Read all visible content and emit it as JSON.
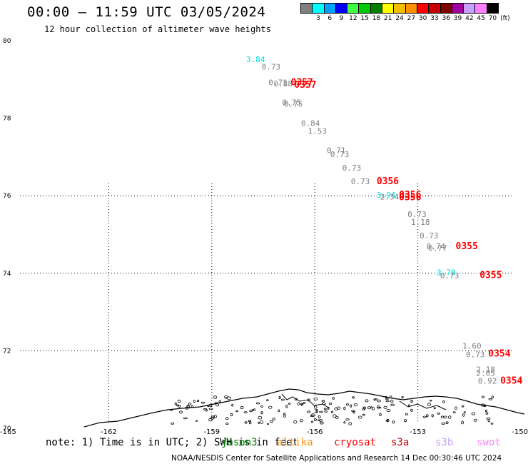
{
  "header": {
    "title": "00:00 – 11:59 UTC 03/05/2024",
    "subtitle": "12 hour collection of altimeter wave heights"
  },
  "legend": {
    "unit": "(ft)",
    "bins": [
      {
        "label": "",
        "color": "#808080"
      },
      {
        "label": "3",
        "color": "#00ffff"
      },
      {
        "label": "6",
        "color": "#00a0ff"
      },
      {
        "label": "9",
        "color": "#0000ff"
      },
      {
        "label": "12",
        "color": "#40ff40"
      },
      {
        "label": "15",
        "color": "#00c800"
      },
      {
        "label": "18",
        "color": "#008000"
      },
      {
        "label": "21",
        "color": "#ffff00"
      },
      {
        "label": "24",
        "color": "#f0c000"
      },
      {
        "label": "27",
        "color": "#ff9000"
      },
      {
        "label": "30",
        "color": "#ff0000"
      },
      {
        "label": "33",
        "color": "#c80000"
      },
      {
        "label": "36",
        "color": "#800000"
      },
      {
        "label": "39",
        "color": "#a000a0"
      },
      {
        "label": "42",
        "color": "#c8a0ff"
      },
      {
        "label": "45",
        "color": "#ff80ff"
      },
      {
        "label": "70",
        "color": "#000000"
      }
    ]
  },
  "footer": {
    "note": "note: 1) Time is in UTC; 2) SWH is in feet",
    "satellites": [
      {
        "name": "jason3",
        "color": "#008000"
      },
      {
        "name": "altika",
        "color": "#ff9000"
      },
      {
        "name": "cryosat",
        "color": "#ff0000"
      },
      {
        "name": "s3a",
        "color": "#c80000"
      },
      {
        "name": "s3b",
        "color": "#c8a0ff"
      },
      {
        "name": "swot",
        "color": "#ff80ff"
      }
    ],
    "credit": "NOAA/NESDIS Center for Satellite Applications and Research   14 Dec 00:30:46 UTC 2024"
  },
  "chart_data": {
    "type": "scatter",
    "title": "00:00 – 11:59 UTC 03/05/2024",
    "subtitle": "12 hour collection of altimeter wave heights",
    "xlabel": "",
    "ylabel": "",
    "xlim": [
      -165,
      -150
    ],
    "ylim": [
      70,
      80
    ],
    "xticks": [
      "-165",
      "-162",
      "-159",
      "-156",
      "-153",
      "-150"
    ],
    "xtick_values": [
      -165,
      -162,
      -159,
      -156,
      -153,
      -150
    ],
    "yticks": [
      "70",
      "72",
      "74",
      "76",
      "78",
      "80"
    ],
    "ytick_values": [
      70,
      72,
      74,
      76,
      78,
      80
    ],
    "grid": true,
    "grid_lons": [
      -162,
      -159,
      -156,
      -153
    ],
    "grid_lats": [
      72,
      74,
      76
    ],
    "grid_style": "dotted",
    "points": [
      {
        "lon": -158.0,
        "lat": 79.45,
        "text": "3.84",
        "color": "#00e0e0"
      },
      {
        "lon": -157.55,
        "lat": 79.25,
        "text": "0.73",
        "color": "#808080"
      },
      {
        "lon": -157.35,
        "lat": 78.85,
        "text": "0.71",
        "color": "#808080"
      },
      {
        "lon": -157.2,
        "lat": 78.82,
        "text": "0.88",
        "color": "#808080"
      },
      {
        "lon": -156.7,
        "lat": 78.85,
        "text": "0357",
        "color": "#ff0000"
      },
      {
        "lon": -156.6,
        "lat": 78.78,
        "text": "0357",
        "color": "#ff0000"
      },
      {
        "lon": -156.95,
        "lat": 78.33,
        "text": "0.75",
        "color": "#808080"
      },
      {
        "lon": -156.9,
        "lat": 78.3,
        "text": "0.75",
        "color": "#808080"
      },
      {
        "lon": -156.4,
        "lat": 77.8,
        "text": "0.84",
        "color": "#808080"
      },
      {
        "lon": -156.2,
        "lat": 77.6,
        "text": "1.53",
        "color": "#808080"
      },
      {
        "lon": -155.65,
        "lat": 77.1,
        "text": "0.71",
        "color": "#808080"
      },
      {
        "lon": -155.55,
        "lat": 77.0,
        "text": "0.73",
        "color": "#808080"
      },
      {
        "lon": -155.2,
        "lat": 76.65,
        "text": "0.73",
        "color": "#808080"
      },
      {
        "lon": -154.95,
        "lat": 76.3,
        "text": "0.73",
        "color": "#808080"
      },
      {
        "lon": -154.2,
        "lat": 76.3,
        "text": "0356",
        "color": "#ff0000"
      },
      {
        "lon": -154.2,
        "lat": 75.95,
        "text": "3.94",
        "color": "#00e0e0"
      },
      {
        "lon": -154.1,
        "lat": 75.9,
        "text": "2.34",
        "color": "#808080"
      },
      {
        "lon": -153.55,
        "lat": 75.95,
        "text": "0356",
        "color": "#ff0000"
      },
      {
        "lon": -153.55,
        "lat": 75.88,
        "text": "0356",
        "color": "#ff0000"
      },
      {
        "lon": -153.3,
        "lat": 75.45,
        "text": "0.73",
        "color": "#808080"
      },
      {
        "lon": -153.2,
        "lat": 75.25,
        "text": "1.18",
        "color": "#808080"
      },
      {
        "lon": -152.95,
        "lat": 74.9,
        "text": "0.73",
        "color": "#808080"
      },
      {
        "lon": -152.75,
        "lat": 74.62,
        "text": "0.74",
        "color": "#808080"
      },
      {
        "lon": -152.7,
        "lat": 74.58,
        "text": "0.77",
        "color": "#808080"
      },
      {
        "lon": -151.9,
        "lat": 74.62,
        "text": "0355",
        "color": "#ff0000"
      },
      {
        "lon": -152.45,
        "lat": 73.95,
        "text": "3.78",
        "color": "#00e0e0"
      },
      {
        "lon": -152.35,
        "lat": 73.87,
        "text": "0.73",
        "color": "#808080"
      },
      {
        "lon": -151.2,
        "lat": 73.88,
        "text": "0355",
        "color": "#ff0000"
      },
      {
        "lon": -151.7,
        "lat": 72.05,
        "text": "1.60",
        "color": "#808080"
      },
      {
        "lon": -151.6,
        "lat": 71.83,
        "text": "0.73",
        "color": "#808080"
      },
      {
        "lon": -150.95,
        "lat": 71.85,
        "text": "0354",
        "color": "#ff0000"
      },
      {
        "lon": -151.3,
        "lat": 71.45,
        "text": "2.18",
        "color": "#808080"
      },
      {
        "lon": -151.3,
        "lat": 71.35,
        "text": "2.05",
        "color": "#808080"
      },
      {
        "lon": -151.25,
        "lat": 71.15,
        "text": "0.92",
        "color": "#808080"
      },
      {
        "lon": -150.6,
        "lat": 71.15,
        "text": "0354",
        "color": "#ff0000"
      }
    ]
  }
}
